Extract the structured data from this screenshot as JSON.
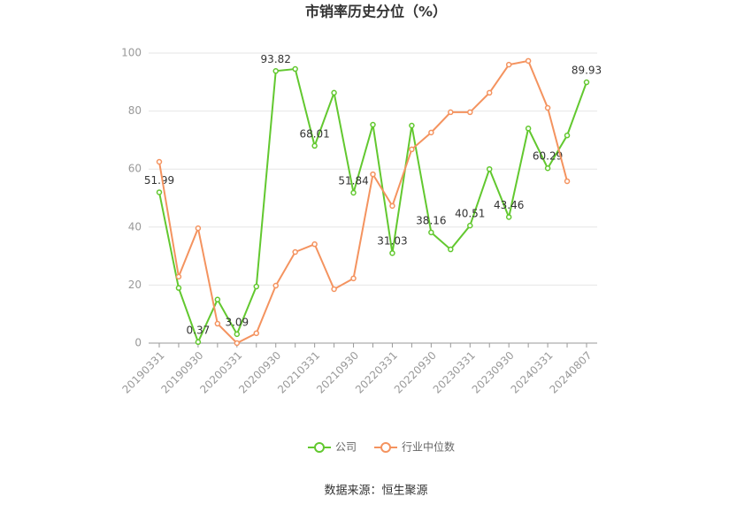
{
  "chart_data": {
    "type": "line",
    "title": "市销率历史分位（%）",
    "source": "数据来源：恒生聚源",
    "categories": [
      "20190331",
      null,
      "20190930",
      null,
      "20200331",
      null,
      "20200930",
      null,
      "20210331",
      null,
      "20210930",
      null,
      "20220331",
      null,
      "20220930",
      null,
      "20230331",
      null,
      "20230930",
      null,
      "20240331",
      null,
      "20240807"
    ],
    "series": [
      {
        "name": "公司",
        "color": "#62c82f",
        "values": [
          51.99,
          19,
          0.37,
          15,
          3.09,
          19.5,
          93.82,
          94.5,
          68.01,
          86.3,
          51.84,
          75.3,
          31.03,
          75,
          38.16,
          32.3,
          40.51,
          60,
          43.46,
          74,
          60.29,
          71.6,
          89.93
        ],
        "value_labels": [
          "51.99",
          null,
          "0.37",
          null,
          "3.09",
          null,
          "93.82",
          null,
          "68.01",
          null,
          "51.84",
          null,
          "31.03",
          null,
          "38.16",
          null,
          "40.51",
          null,
          "43.46",
          null,
          "60.29",
          null,
          "89.93"
        ]
      },
      {
        "name": "行业中位数",
        "color": "#f4935f",
        "values": [
          62.5,
          22.9,
          39.6,
          6.7,
          0,
          3.4,
          19.8,
          31.4,
          34.1,
          18.6,
          22.3,
          58.2,
          47.3,
          66.8,
          72.6,
          79.6,
          79.6,
          86.3,
          96,
          97.3,
          81.1,
          55.8,
          null
        ]
      }
    ],
    "ylim": [
      0,
      100
    ],
    "yticks": [
      0,
      20,
      40,
      60,
      80,
      100
    ],
    "grid": true
  }
}
